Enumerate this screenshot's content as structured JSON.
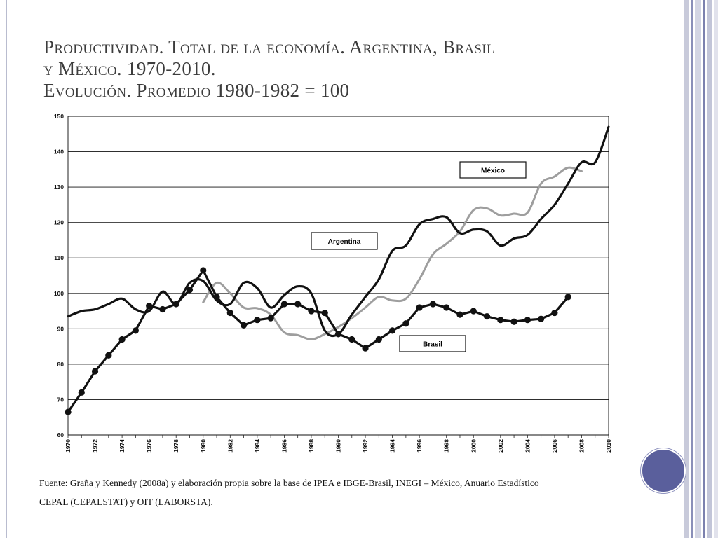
{
  "slide": {
    "title_line1": "Productividad. Total de la economía. Argentina, Brasil",
    "title_line2": "y México. 1970-2010.",
    "title_line3": "Evolución. Promedio 1980-1982 = 100",
    "source_line1": "Fuente: Graña y Kennedy (2008a) y elaboración propia sobre la base de IPEA e IBGE-Brasil, INEGI – México, Anuario Estadístico",
    "source_line2": "CEPAL (CEPALSTAT) y OIT (LABORSTA).",
    "accent_color": "#5a5f9c"
  },
  "chart_data": {
    "type": "line",
    "title": "",
    "xlabel": "",
    "ylabel": "",
    "xlim": [
      1970,
      2010
    ],
    "ylim": [
      60,
      150
    ],
    "yticks": [
      60,
      70,
      80,
      90,
      100,
      110,
      120,
      130,
      140,
      150
    ],
    "xticks": [
      "1970",
      "1972",
      "1974",
      "1976",
      "1978",
      "1980",
      "1982",
      "1984",
      "1986",
      "1988",
      "1990",
      "1992",
      "1994",
      "1996",
      "1998",
      "2000",
      "2002",
      "2004",
      "2006",
      "2008",
      "2010"
    ],
    "grid": "horizontal",
    "series": [
      {
        "name": "Argentina",
        "color": "#111111",
        "markers": false,
        "x": [
          1970,
          1971,
          1972,
          1973,
          1974,
          1975,
          1976,
          1977,
          1978,
          1979,
          1980,
          1981,
          1982,
          1983,
          1984,
          1985,
          1986,
          1987,
          1988,
          1989,
          1990,
          1991,
          1992,
          1993,
          1994,
          1995,
          1996,
          1997,
          1998,
          1999,
          2000,
          2001,
          2002,
          2003,
          2004,
          2005,
          2006,
          2007,
          2008,
          2009,
          2010
        ],
        "values": [
          93.5,
          95,
          95.5,
          97,
          98.5,
          95.5,
          95,
          100.5,
          97,
          103,
          103.5,
          98,
          97,
          103,
          101.5,
          96,
          99.5,
          102,
          100,
          89.5,
          88.5,
          94,
          99,
          104,
          112,
          113.5,
          119.5,
          121,
          121.5,
          117,
          118,
          117.5,
          113.5,
          115.5,
          116.5,
          121,
          125,
          131,
          137,
          137,
          147
        ]
      },
      {
        "name": "México",
        "color": "#9e9e9e",
        "markers": false,
        "x": [
          1980,
          1981,
          1982,
          1983,
          1984,
          1985,
          1986,
          1987,
          1988,
          1989,
          1990,
          1991,
          1992,
          1993,
          1994,
          1995,
          1996,
          1997,
          1998,
          1999,
          2000,
          2001,
          2002,
          2003,
          2004,
          2005,
          2006,
          2007,
          2008
        ],
        "values": [
          97.5,
          103,
          100,
          96,
          95.8,
          94,
          89,
          88.2,
          87,
          88.5,
          90.5,
          93,
          96,
          99,
          98,
          98.5,
          104,
          111,
          114,
          117.5,
          123.5,
          124,
          122,
          122.5,
          122.8,
          131,
          133,
          135.5,
          134.5
        ]
      },
      {
        "name": "Brasil",
        "color": "#111111",
        "markers": true,
        "x": [
          1970,
          1971,
          1972,
          1973,
          1974,
          1975,
          1976,
          1977,
          1978,
          1979,
          1980,
          1981,
          1982,
          1983,
          1984,
          1985,
          1986,
          1987,
          1988,
          1989,
          1990,
          1991,
          1992,
          1993,
          1994,
          1995,
          1996,
          1997,
          1998,
          1999,
          2000,
          2001,
          2002,
          2003,
          2004,
          2005,
          2006,
          2007
        ],
        "values": [
          66.5,
          72,
          78,
          82.5,
          87,
          89.5,
          96.5,
          95.5,
          97,
          101,
          106.5,
          99,
          94.5,
          91,
          92.5,
          93,
          97,
          97,
          95,
          94.5,
          88.5,
          87,
          84.5,
          87,
          89.5,
          91.5,
          96,
          97,
          96,
          94,
          95,
          93.5,
          92.5,
          92,
          92.5,
          92.8,
          94.5,
          99
        ]
      }
    ]
  }
}
